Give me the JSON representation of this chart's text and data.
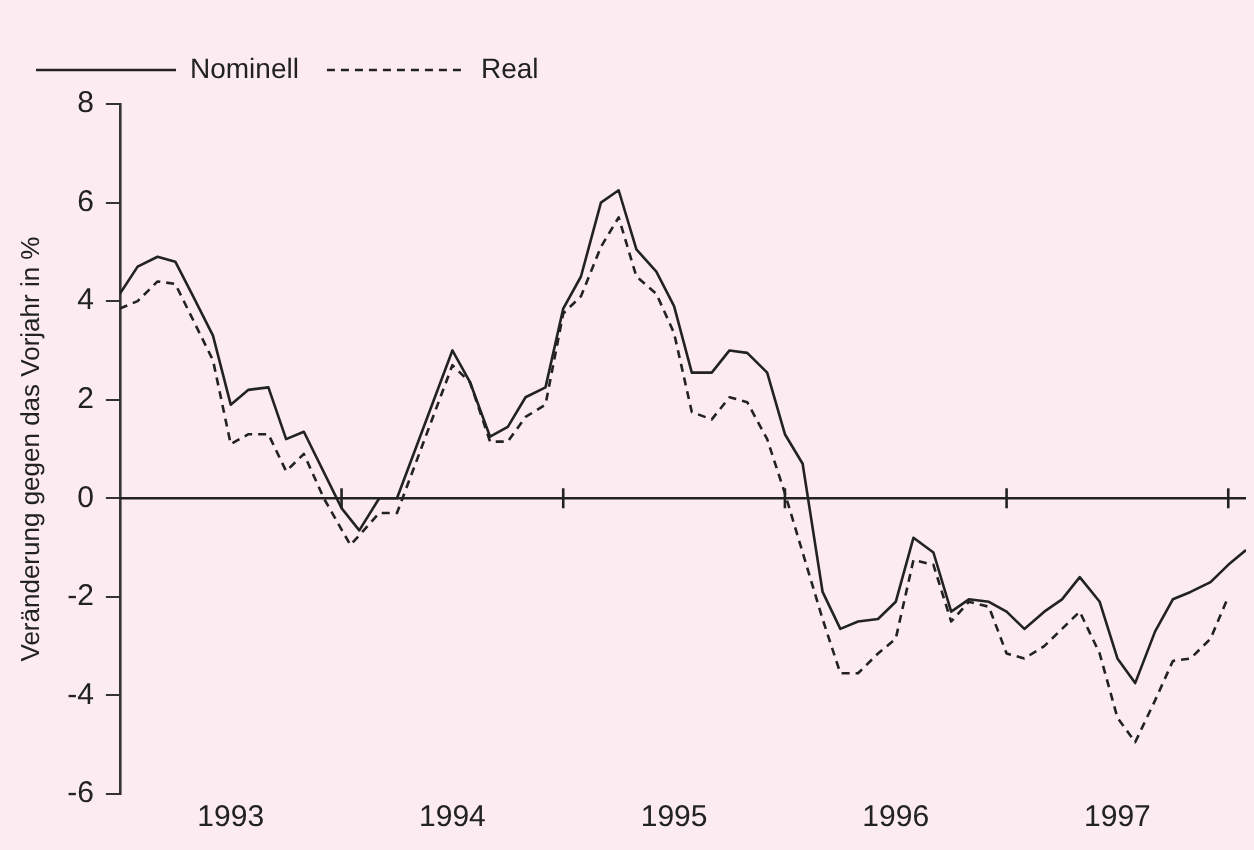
{
  "chart_data": {
    "type": "line",
    "ylabel": "Veränderung gegen das Vorjahr in %",
    "xlim": [
      1993,
      1998.08
    ],
    "ylim": [
      -6,
      8
    ],
    "xticks": [
      {
        "value": 1993.5,
        "label": "1993"
      },
      {
        "value": 1994,
        "label": null
      },
      {
        "value": 1994.5,
        "label": "1994"
      },
      {
        "value": 1995,
        "label": null
      },
      {
        "value": 1995.5,
        "label": "1995"
      },
      {
        "value": 1996,
        "label": null
      },
      {
        "value": 1996.5,
        "label": "1996"
      },
      {
        "value": 1997,
        "label": null
      },
      {
        "value": 1997.5,
        "label": "1997"
      },
      {
        "value": 1998,
        "label": null
      }
    ],
    "yticks": [
      -6,
      -4,
      -2,
      0,
      2,
      4,
      6,
      8
    ],
    "ref_lines": [
      {
        "axis": "y",
        "value": 0
      }
    ],
    "legend": "top left",
    "marker": "none",
    "series": [
      {
        "name": "Nominell",
        "color": "#222222",
        "line_style": "solid",
        "x": [
          1993.0,
          1993.08,
          1993.17,
          1993.25,
          1993.33,
          1993.42,
          1993.5,
          1993.58,
          1993.67,
          1993.75,
          1993.83,
          1994.0,
          1994.08,
          1994.17,
          1994.25,
          1994.5,
          1994.58,
          1994.67,
          1994.75,
          1994.83,
          1994.92,
          1995.0,
          1995.08,
          1995.17,
          1995.25,
          1995.33,
          1995.42,
          1995.5,
          1995.58,
          1995.67,
          1995.75,
          1995.83,
          1995.92,
          1996.0,
          1996.08,
          1996.17,
          1996.25,
          1996.33,
          1996.42,
          1996.5,
          1996.58,
          1996.67,
          1996.75,
          1996.83,
          1996.92,
          1997.0,
          1997.08,
          1997.17,
          1997.25,
          1997.33,
          1997.42,
          1997.5,
          1997.58,
          1997.67,
          1997.75,
          1997.83,
          1997.92,
          1998.0,
          1998.08
        ],
        "values": [
          4.15,
          4.7,
          4.9,
          4.8,
          4.1,
          3.3,
          1.9,
          2.2,
          2.25,
          1.2,
          1.35,
          -0.2,
          -0.65,
          0,
          0,
          3.0,
          2.35,
          1.25,
          1.45,
          2.05,
          2.25,
          3.85,
          4.5,
          6.0,
          6.25,
          5.05,
          4.6,
          3.9,
          2.55,
          2.55,
          3.0,
          2.95,
          2.55,
          1.3,
          0.7,
          -1.9,
          -2.65,
          -2.5,
          -2.45,
          -2.1,
          -0.8,
          -1.1,
          -2.3,
          -2.05,
          -2.1,
          -2.3,
          -2.65,
          -2.3,
          -2.05,
          -1.6,
          -2.1,
          -3.25,
          -3.75,
          -2.7,
          -2.05,
          -1.9,
          -1.7,
          -1.35,
          -1.05
        ]
      },
      {
        "name": "Real",
        "color": "#222222",
        "line_style": "dashed",
        "x": [
          1993.0,
          1993.08,
          1993.17,
          1993.25,
          1993.42,
          1993.5,
          1993.58,
          1993.67,
          1993.75,
          1993.83,
          1993.92,
          1994.04,
          1994.17,
          1994.25,
          1994.5,
          1994.58,
          1994.67,
          1994.75,
          1994.83,
          1994.92,
          1995.0,
          1995.08,
          1995.17,
          1995.25,
          1995.33,
          1995.42,
          1995.5,
          1995.58,
          1995.67,
          1995.75,
          1995.83,
          1995.92,
          1996.0,
          1996.17,
          1996.25,
          1996.33,
          1996.42,
          1996.5,
          1996.58,
          1996.67,
          1996.75,
          1996.83,
          1996.92,
          1997.0,
          1997.08,
          1997.17,
          1997.25,
          1997.33,
          1997.42,
          1997.5,
          1997.58,
          1997.67,
          1997.75,
          1997.83,
          1997.92,
          1998.0
        ],
        "values": [
          3.85,
          4.0,
          4.4,
          4.35,
          2.8,
          1.1,
          1.3,
          1.3,
          0.55,
          0.9,
          0,
          -0.95,
          -0.3,
          -0.3,
          2.7,
          2.35,
          1.15,
          1.15,
          1.65,
          1.9,
          3.75,
          4.1,
          5.1,
          5.7,
          4.5,
          4.15,
          3.35,
          1.75,
          1.6,
          2.05,
          1.95,
          1.2,
          0.1,
          -2.45,
          -3.55,
          -3.55,
          -3.15,
          -2.85,
          -1.25,
          -1.35,
          -2.5,
          -2.1,
          -2.2,
          -3.15,
          -3.25,
          -3.0,
          -2.65,
          -2.3,
          -3.15,
          -4.45,
          -4.95,
          -4.1,
          -3.3,
          -3.25,
          -2.85,
          -2.0
        ]
      }
    ]
  }
}
